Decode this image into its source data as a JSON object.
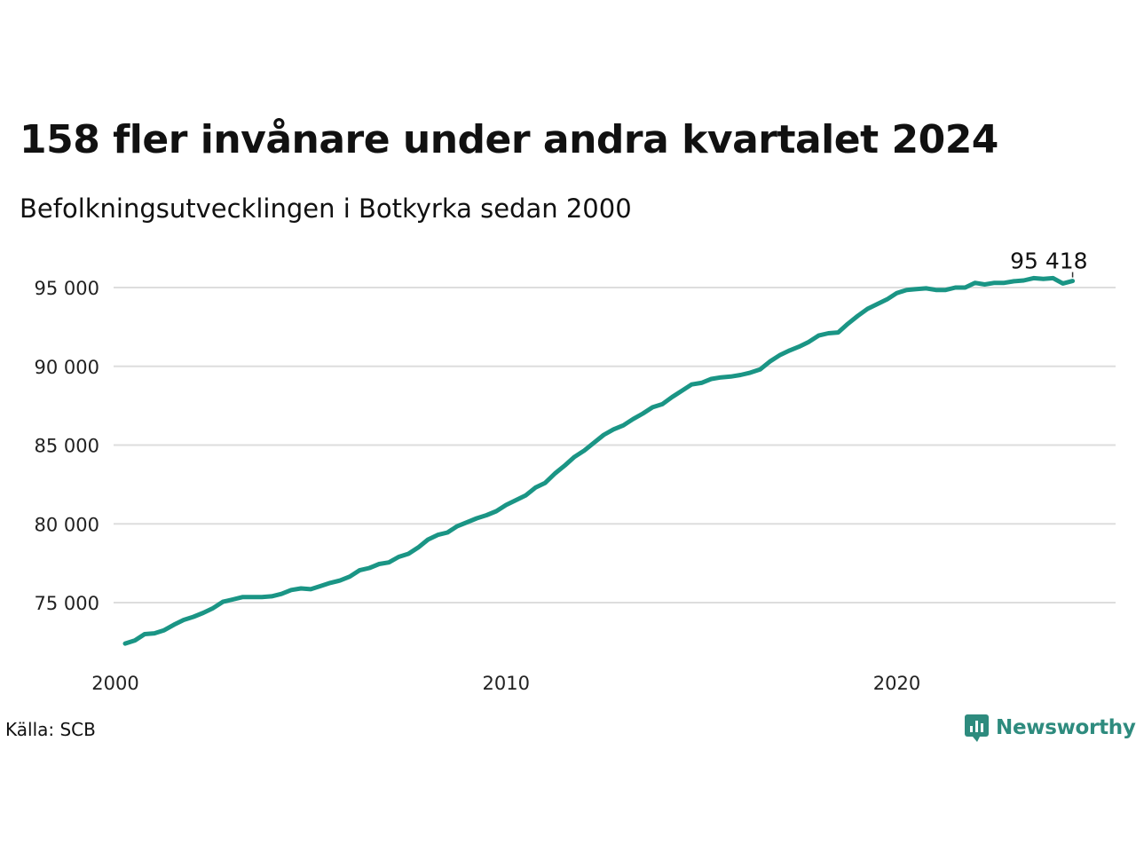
{
  "title": "158 fler invånare under andra kvartalet 2024",
  "subtitle": "Befolkningsutvecklingen i Botkyrka sedan 2000",
  "source": "Källa: SCB",
  "brand": "Newsworthy",
  "colors": {
    "line": "#1a9585",
    "grid": "#dddddd",
    "brand": "#2e8b7e"
  },
  "chart_data": {
    "type": "line",
    "x_ticks": [
      2000,
      2010,
      2020
    ],
    "y_ticks": [
      75000,
      80000,
      85000,
      90000,
      95000
    ],
    "y_tick_labels": [
      "75 000",
      "80 000",
      "85 000",
      "90 000",
      "95 000"
    ],
    "x_tick_labels": [
      "2000",
      "2010",
      "2020"
    ],
    "xlim": [
      2000,
      2025.6
    ],
    "ylim": [
      71500,
      96500
    ],
    "grid": true,
    "end_label": "95 418",
    "series": [
      {
        "x": [
          2000.25,
          2000.5,
          2000.75,
          2001.0,
          2001.25,
          2001.5,
          2001.75,
          2002.0,
          2002.25,
          2002.5,
          2002.75,
          2003.0,
          2003.25,
          2003.5,
          2003.75,
          2004.0,
          2004.25,
          2004.5,
          2004.75,
          2005.0,
          2005.25,
          2005.5,
          2005.75,
          2006.0,
          2006.25,
          2006.5,
          2006.75,
          2007.0,
          2007.25,
          2007.5,
          2007.75,
          2008.0,
          2008.25,
          2008.5,
          2008.75,
          2009.0,
          2009.25,
          2009.5,
          2009.75,
          2010.0,
          2010.25,
          2010.5,
          2010.75,
          2011.0,
          2011.25,
          2011.5,
          2011.75,
          2012.0,
          2012.25,
          2012.5,
          2012.75,
          2013.0,
          2013.25,
          2013.5,
          2013.75,
          2014.0,
          2014.25,
          2014.5,
          2014.75,
          2015.0,
          2015.25,
          2015.5,
          2015.75,
          2016.0,
          2016.25,
          2016.5,
          2016.75,
          2017.0,
          2017.25,
          2017.5,
          2017.75,
          2018.0,
          2018.25,
          2018.5,
          2018.75,
          2019.0,
          2019.25,
          2019.5,
          2019.75,
          2020.0,
          2020.25,
          2020.5,
          2020.75,
          2021.0,
          2021.25,
          2021.5,
          2021.75,
          2022.0,
          2022.25,
          2022.5,
          2022.75,
          2023.0,
          2023.25,
          2023.5,
          2023.75,
          2024.0,
          2024.25,
          2024.5
        ],
        "values": [
          72400,
          72600,
          73000,
          73050,
          73250,
          73600,
          73900,
          74100,
          74350,
          74650,
          75050,
          75200,
          75350,
          75350,
          75350,
          75400,
          75550,
          75800,
          75900,
          75850,
          76050,
          76250,
          76400,
          76650,
          77050,
          77200,
          77450,
          77550,
          77900,
          78100,
          78500,
          79000,
          79300,
          79450,
          79850,
          80100,
          80350,
          80550,
          80800,
          81200,
          81500,
          81800,
          82300,
          82600,
          83200,
          83700,
          84250,
          84650,
          85150,
          85650,
          86000,
          86250,
          86650,
          87000,
          87400,
          87600,
          88050,
          88450,
          88850,
          88950,
          89200,
          89300,
          89350,
          89450,
          89600,
          89800,
          90300,
          90700,
          91000,
          91250,
          91550,
          91950,
          92100,
          92150,
          92700,
          93200,
          93650,
          93950,
          94250,
          94650,
          94850,
          94900,
          94950,
          94850,
          94850,
          95000,
          95000,
          95300,
          95200,
          95300,
          95300,
          95400,
          95450,
          95600,
          95550,
          95600,
          95260,
          95418
        ]
      }
    ]
  }
}
